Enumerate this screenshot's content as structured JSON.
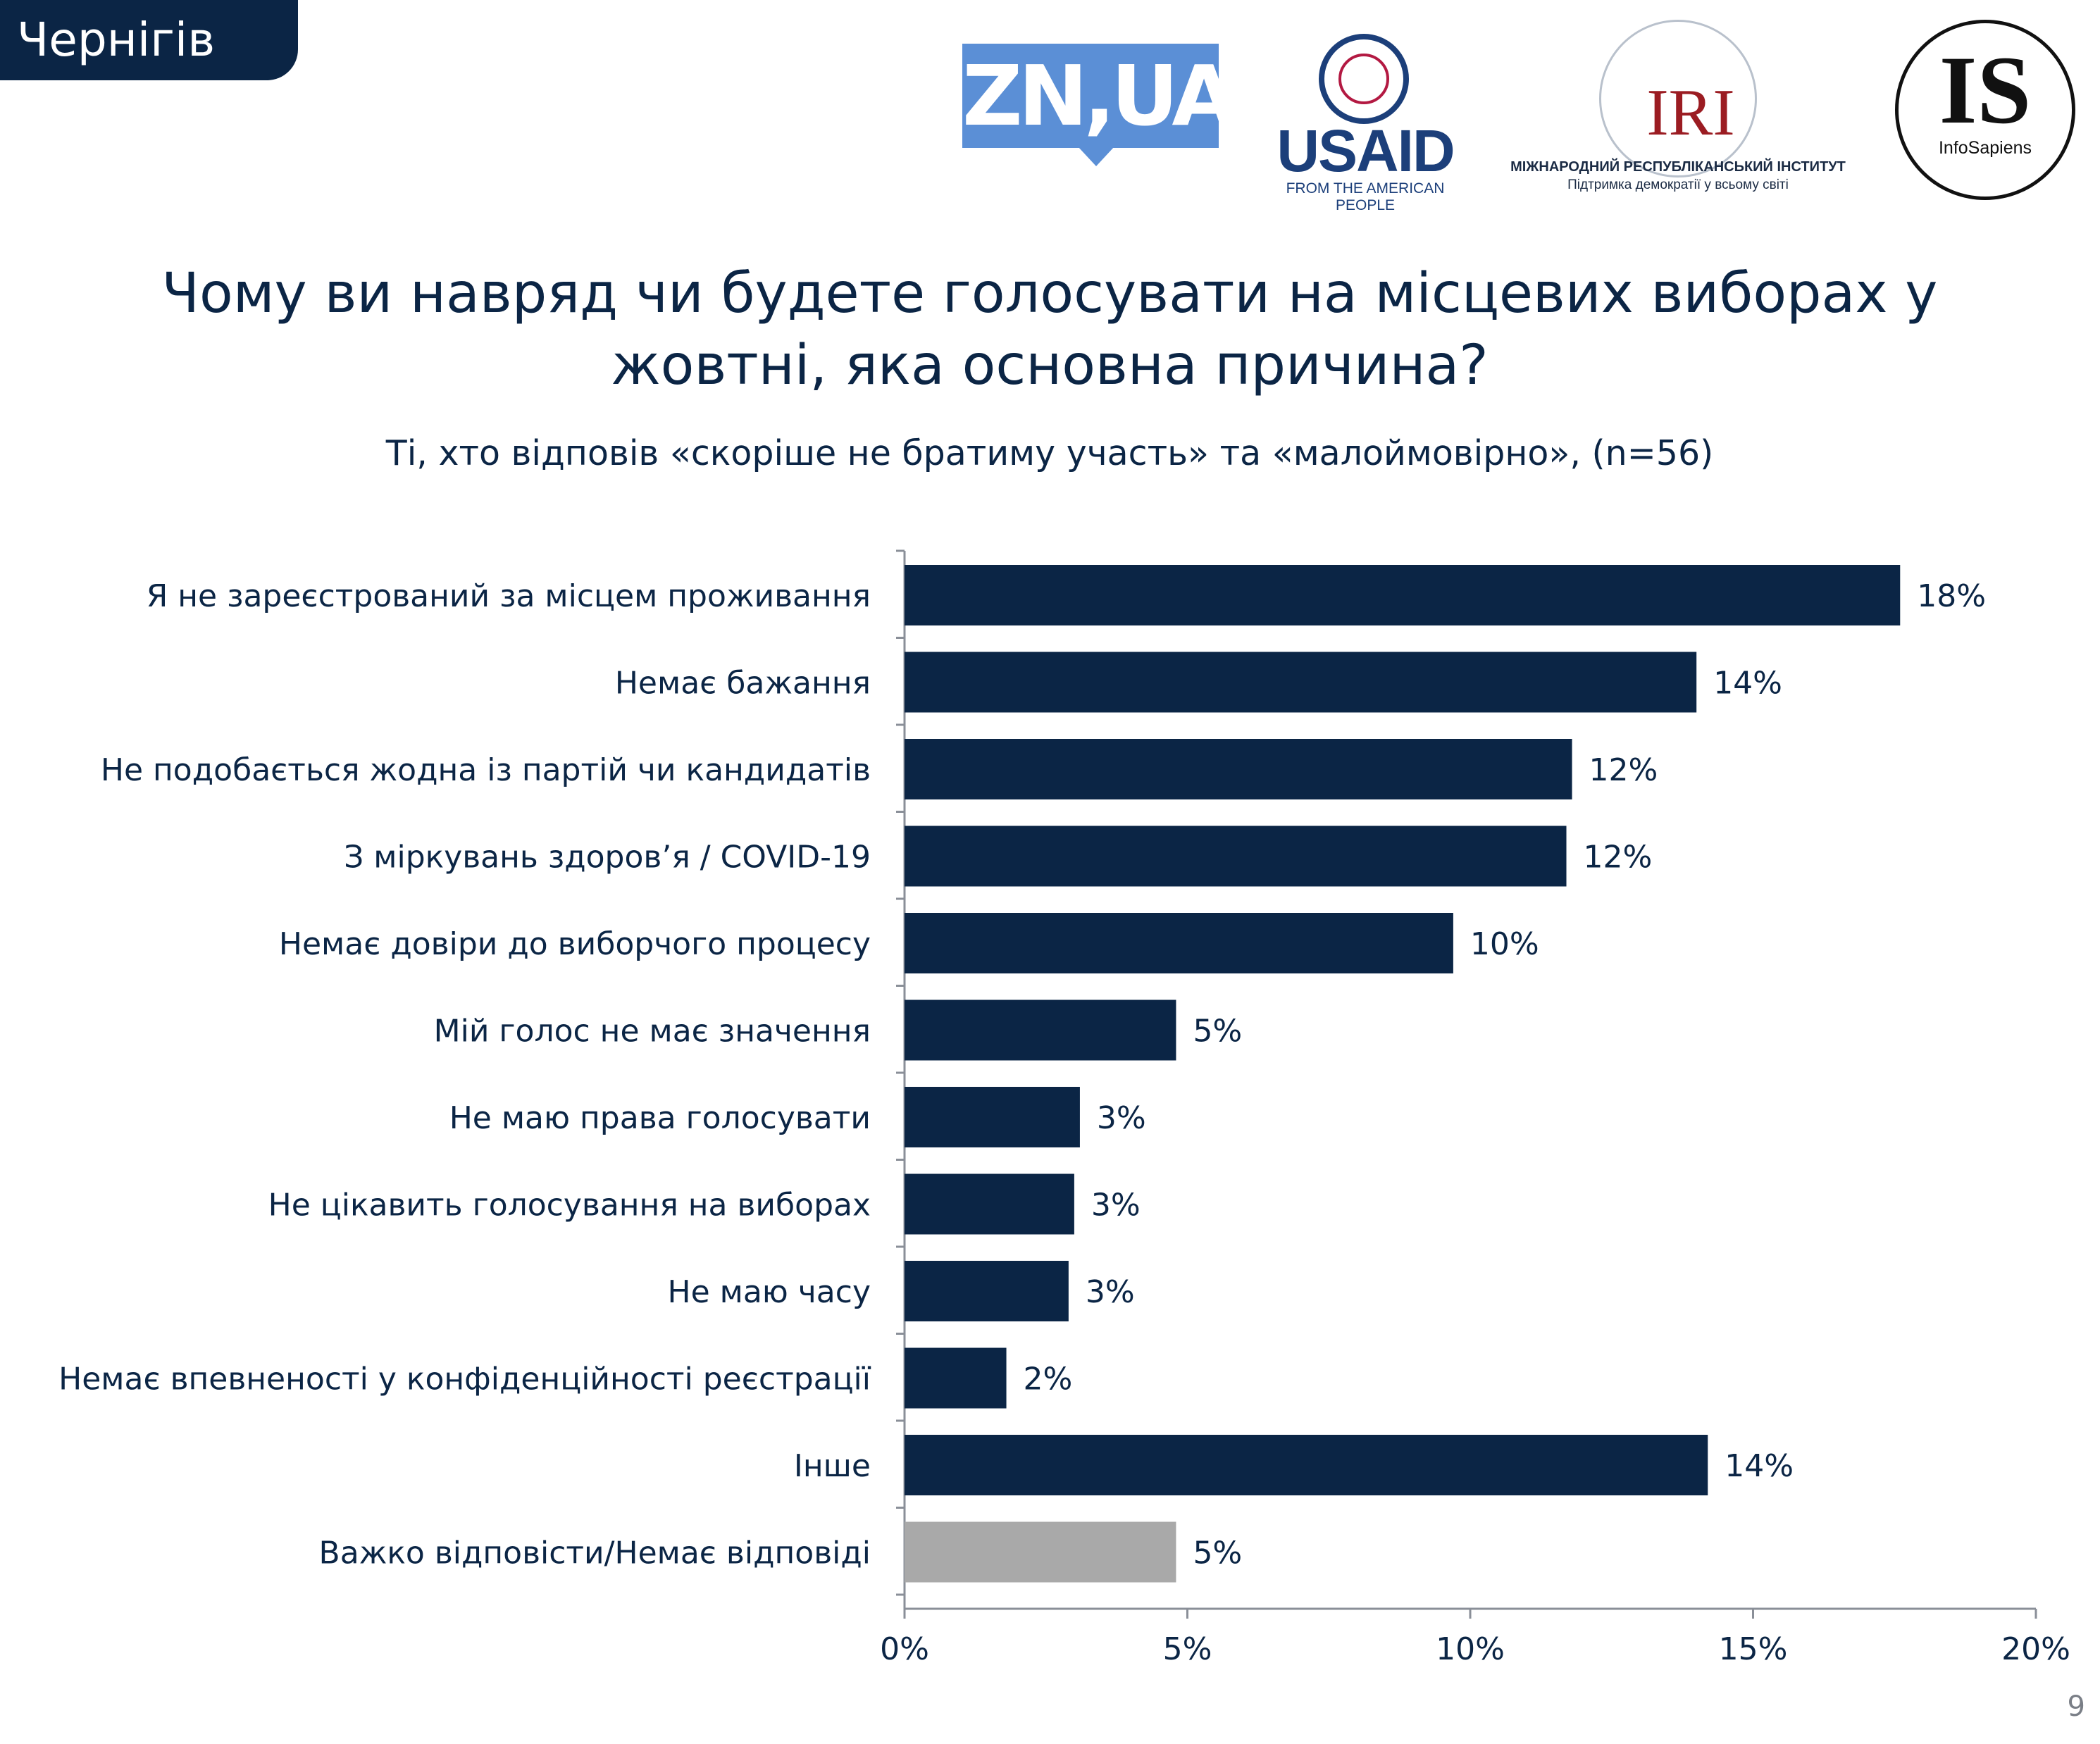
{
  "header": {
    "city": "Чернігів"
  },
  "logos": {
    "zn": "ZN,UA",
    "usaid": "USAID",
    "usaid_tagline": "FROM THE AMERICAN PEOPLE",
    "iri": "IRI",
    "iri_line1": "МІЖНАРОДНИЙ РЕСПУБЛІКАНСЬКИЙ ІНСТИТУТ",
    "iri_line2": "Підтримка демократії у всьому світі",
    "is": "IS",
    "is_sub": "InfoSapiens"
  },
  "page_number": "9",
  "colors": {
    "bar": "#0b2545",
    "bar_muted": "#a9a9a9",
    "accent_blue": "#5b8fd6"
  },
  "chart_data": {
    "type": "bar",
    "orientation": "horizontal",
    "title_line1": "Чому ви навряд чи будете голосувати на місцевих виборах у",
    "title_line2": "жовтні, яка основна причина?",
    "subtitle": "Ті, хто відповів «скоріше не братиму участь» та «малоймовірно», (n=56)",
    "categories": [
      "Я не зареєстрований за місцем проживання",
      "Немає бажання",
      "Не подобається жодна із партій чи кандидатів",
      "З міркувань здоров’я / COVID-19",
      "Немає довіри до виборчого процесу",
      "Мій голос не має значення",
      "Не маю права голосувати",
      "Не цікавить голосування на виборах",
      "Не маю часу",
      "Немає впевненості у конфіденційності реєстрації",
      "Інше",
      "Важко відповісти/Немає відповіді"
    ],
    "values": [
      17.6,
      14.0,
      11.8,
      11.7,
      9.7,
      4.8,
      3.1,
      3.0,
      2.9,
      1.8,
      14.2,
      4.8
    ],
    "value_labels": [
      "18%",
      "14%",
      "12%",
      "12%",
      "10%",
      "5%",
      "3%",
      "3%",
      "3%",
      "2%",
      "14%",
      "5%"
    ],
    "highlight_last_gray": true,
    "xlim": [
      0,
      20
    ],
    "xticks": [
      "0%",
      "5%",
      "10%",
      "15%",
      "20%"
    ],
    "grid": false,
    "legend": "none"
  }
}
